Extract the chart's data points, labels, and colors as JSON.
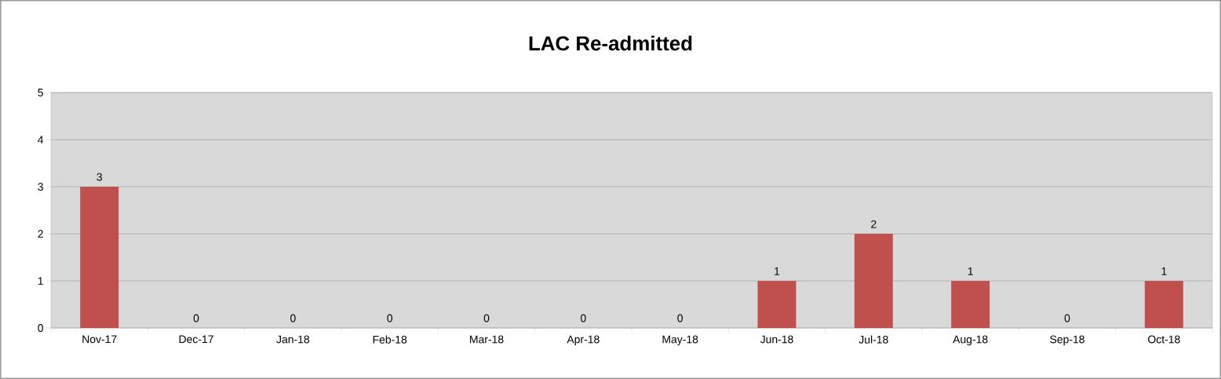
{
  "chart_data": {
    "type": "bar",
    "title": "LAC Re-admitted",
    "categories": [
      "Nov-17",
      "Dec-17",
      "Jan-18",
      "Feb-18",
      "Mar-18",
      "Apr-18",
      "May-18",
      "Jun-18",
      "Jul-18",
      "Aug-18",
      "Sep-18",
      "Oct-18"
    ],
    "values": [
      3,
      0,
      0,
      0,
      0,
      0,
      0,
      1,
      2,
      1,
      0,
      1
    ],
    "color": "#c0504d",
    "ylim": [
      0,
      5
    ],
    "yticks": [
      0,
      1,
      2,
      3,
      4,
      5
    ],
    "grid": "y",
    "data_labels": true
  }
}
